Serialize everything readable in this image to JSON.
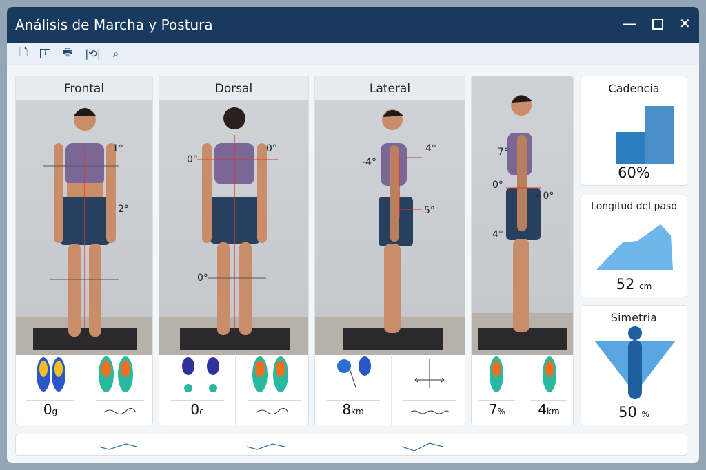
{
  "window": {
    "title": "Análisis de Marcha y Postura"
  },
  "toolbar": {
    "icons": [
      "new-document-icon",
      "info-icon",
      "print-icon",
      "undo-icon",
      "search-icon"
    ]
  },
  "views": [
    {
      "label": "Frontal",
      "angles": [
        "1°",
        "2°"
      ],
      "metrics": [
        {
          "value": "0",
          "unit": "g"
        },
        {
          "value": "",
          "unit": ""
        }
      ]
    },
    {
      "label": "Dorsal",
      "angles": [
        "0°",
        "0°",
        "0°"
      ],
      "metrics": [
        {
          "value": "0",
          "unit": "c"
        },
        {
          "value": "",
          "unit": ""
        }
      ]
    },
    {
      "label": "Lateral",
      "angles": [
        "-4°",
        "4°",
        "5°"
      ],
      "metrics": [
        {
          "value": "8",
          "unit": "km"
        },
        {
          "value": "",
          "unit": ""
        }
      ]
    },
    {
      "label": "",
      "angles": [
        "7°",
        "0°",
        "- 0°",
        "4°"
      ],
      "metrics": [
        {
          "value": "7",
          "unit": "%"
        },
        {
          "value": "4",
          "unit": "km"
        }
      ]
    }
  ],
  "cards": {
    "cadencia": {
      "title": "Cadencia",
      "value": "60%",
      "unit": "",
      "bars": [
        0.55,
        1.0
      ]
    },
    "longitud": {
      "title": "Longitud del paso",
      "value": "52",
      "unit": "cm"
    },
    "simetria": {
      "title": "Simetria",
      "value": "50",
      "unit": "%"
    }
  },
  "colors": {
    "titlebar": "#173a5e",
    "accent": "#2b7fc1",
    "guide_line": "#e0352b"
  }
}
